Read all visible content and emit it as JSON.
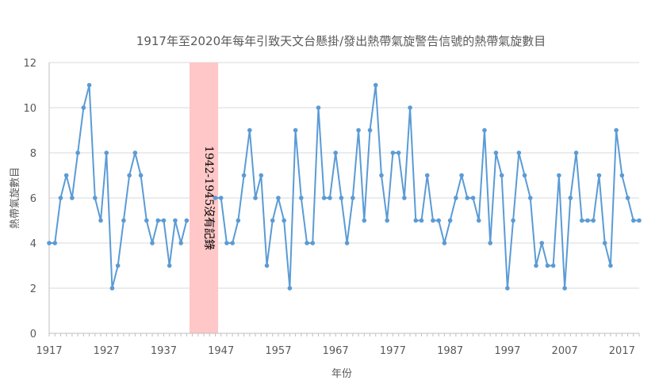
{
  "chart_data": {
    "type": "line",
    "title": "1917年至2020年每年引致天文台懸掛/發出熱帶氣旋警告信號的熱帶氣旋數目",
    "xlabel": "年份",
    "ylabel": "熱帶氣旋數目",
    "ylim": [
      0,
      12
    ],
    "yticks": [
      "0",
      "2",
      "4",
      "6",
      "8",
      "10",
      "12"
    ],
    "xlim": [
      1917,
      2020
    ],
    "xticks": [
      "1917",
      "1927",
      "1937",
      "1947",
      "1957",
      "1967",
      "1977",
      "1987",
      "1997",
      "2007",
      "2017"
    ],
    "grid": "horizontal",
    "legend": "none",
    "line_color": "#5B9BD5",
    "highlight_color": "#FFC7C7",
    "highlight_range": [
      1941.5,
      1946.5
    ],
    "annotation": "1942-1945沒有記錄",
    "series": [
      {
        "segments": [
          {
            "x": [
              1917,
              1918,
              1919,
              1920,
              1921,
              1922,
              1923,
              1924,
              1925,
              1926,
              1927,
              1928,
              1929,
              1930,
              1931,
              1932,
              1933,
              1934,
              1935,
              1936,
              1937,
              1938,
              1939,
              1940,
              1941
            ],
            "y": [
              4,
              4,
              6,
              7,
              6,
              8,
              10,
              11,
              6,
              5,
              8,
              2,
              3,
              5,
              7,
              8,
              7,
              5,
              4,
              5,
              5,
              3,
              5,
              4,
              5
            ]
          },
          {
            "x": [
              1946,
              1947,
              1948,
              1949,
              1950,
              1951,
              1952,
              1953,
              1954,
              1955,
              1956,
              1957,
              1958,
              1959,
              1960,
              1961,
              1962,
              1963,
              1964,
              1965,
              1966,
              1967,
              1968,
              1969,
              1970,
              1971,
              1972,
              1973,
              1974,
              1975,
              1976,
              1977,
              1978,
              1979,
              1980,
              1981,
              1982,
              1983,
              1984,
              1985,
              1986,
              1987,
              1988,
              1989,
              1990,
              1991,
              1992,
              1993,
              1994,
              1995,
              1996,
              1997,
              1998,
              1999,
              2000,
              2001,
              2002,
              2003,
              2004,
              2005,
              2006,
              2007,
              2008,
              2009,
              2010,
              2011,
              2012,
              2013,
              2014,
              2015,
              2016,
              2017,
              2018,
              2019,
              2020
            ],
            "y": [
              6,
              6,
              4,
              4,
              5,
              7,
              9,
              6,
              7,
              3,
              5,
              6,
              5,
              2,
              9,
              6,
              4,
              4,
              10,
              6,
              6,
              8,
              6,
              4,
              6,
              9,
              5,
              9,
              11,
              7,
              5,
              8,
              8,
              6,
              10,
              5,
              5,
              7,
              5,
              5,
              4,
              5,
              6,
              7,
              6,
              6,
              5,
              9,
              4,
              8,
              7,
              2,
              5,
              8,
              7,
              6,
              3,
              4,
              3,
              3,
              7,
              2,
              6,
              8,
              5,
              5,
              5,
              7,
              4,
              3,
              9,
              7,
              6,
              5,
              5
            ]
          }
        ]
      }
    ]
  }
}
